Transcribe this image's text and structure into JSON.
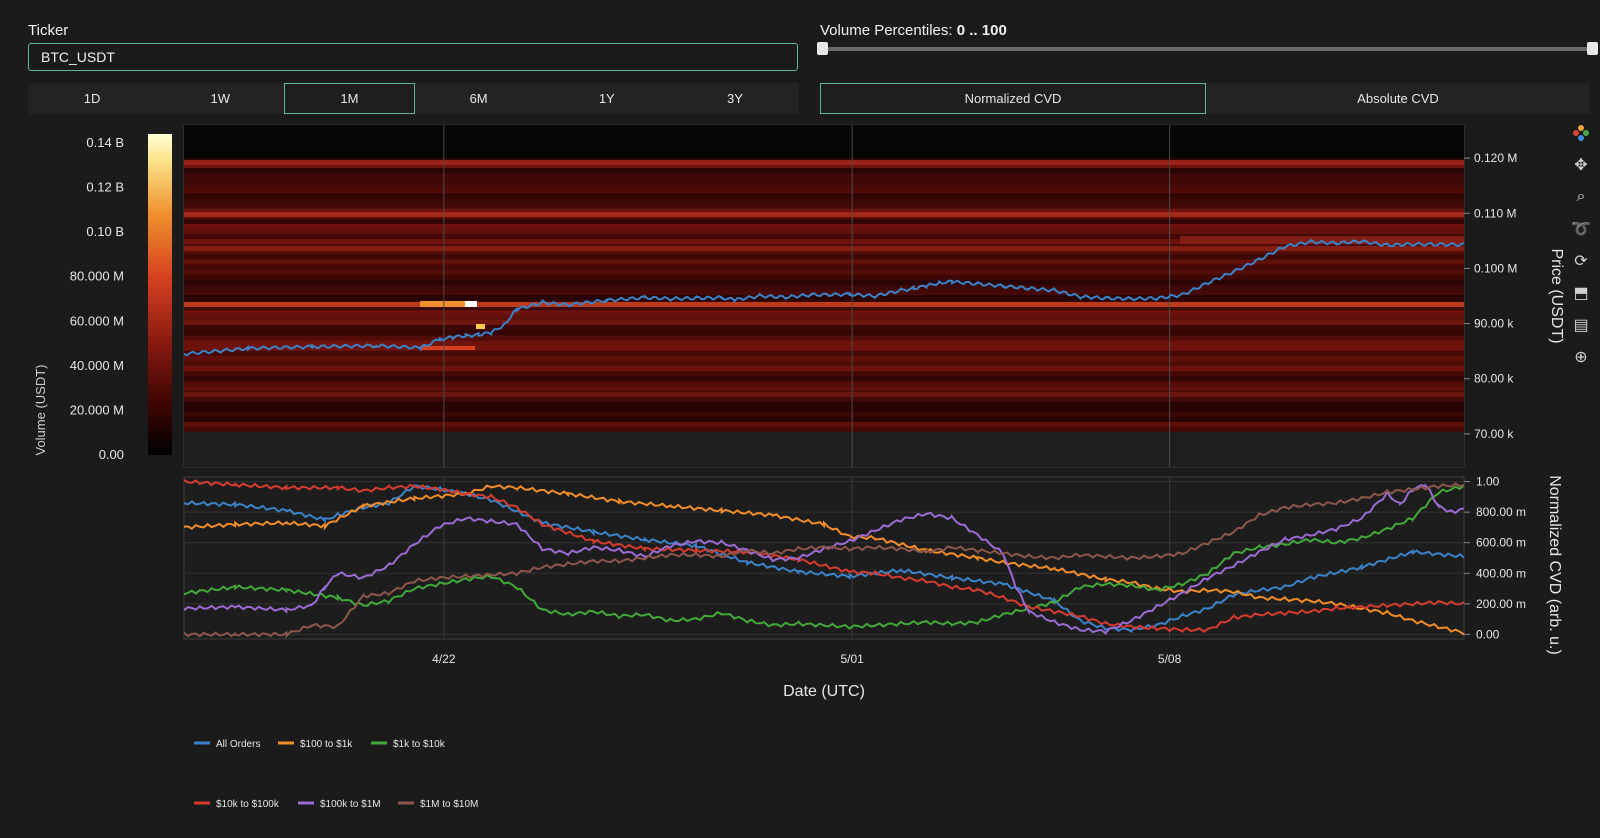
{
  "ticker": {
    "label": "Ticker",
    "value": "BTC_USDT"
  },
  "volume_percentiles": {
    "label": "Volume Percentiles:",
    "value": "0 .. 100",
    "min": 0,
    "max": 100
  },
  "timeframes": [
    {
      "label": "1D",
      "active": false
    },
    {
      "label": "1W",
      "active": false
    },
    {
      "label": "1M",
      "active": true
    },
    {
      "label": "6M",
      "active": false
    },
    {
      "label": "1Y",
      "active": false
    },
    {
      "label": "3Y",
      "active": false
    }
  ],
  "cvd_modes": [
    {
      "label": "Normalized CVD",
      "active": true
    },
    {
      "label": "Absolute CVD",
      "active": false
    }
  ],
  "modebar": [
    "plotly-logo-icon",
    "pan-icon",
    "zoom-icon",
    "lasso-icon",
    "reset-icon",
    "download-icon",
    "comment-icon",
    "crosshair-icon"
  ],
  "chart_data": [
    {
      "type": "heatmap",
      "colorbar": {
        "title": "Volume (USDT)",
        "ticks": [
          "0.00",
          "20.000 M",
          "40.000 M",
          "60.000 M",
          "80.000 M",
          "0.10 B",
          "0.12 B",
          "0.14 B"
        ],
        "range": [
          0,
          140000000
        ]
      },
      "yaxis": {
        "title": "Price (USDT)",
        "side": "right",
        "ticks": [
          "70.00 k",
          "80.00 k",
          "90.00 k",
          "0.100 M",
          "0.110 M",
          "0.120 M"
        ],
        "range": [
          64000,
          126000
        ]
      },
      "xaxis": {
        "ticks": [
          "4/22",
          "5/01",
          "5/08"
        ]
      },
      "colorscale": [
        "#000000",
        "#3a0503",
        "#8a1a10",
        "#d6401f",
        "#f0902c",
        "#fbe58a",
        "#ffffff"
      ],
      "price_line": {
        "name": "Price",
        "color": "#3b82c8",
        "x": [
          0,
          5,
          10,
          15,
          18.5,
          20,
          21,
          22,
          23,
          24,
          25,
          26,
          28,
          30,
          33,
          36,
          38,
          40,
          42,
          43,
          45,
          47,
          49,
          52,
          54,
          56,
          57,
          58,
          59,
          60,
          62,
          64,
          66,
          68,
          70,
          72,
          74,
          76,
          78,
          80,
          82,
          84,
          86,
          88,
          90,
          92,
          94,
          96,
          100
        ],
        "y": [
          84500,
          85500,
          85800,
          86000,
          85600,
          87200,
          87500,
          87800,
          88000,
          88300,
          89800,
          92600,
          93800,
          93400,
          94200,
          94700,
          94500,
          94600,
          94700,
          94300,
          95000,
          94800,
          95200,
          95300,
          95000,
          96000,
          96400,
          96800,
          97400,
          97600,
          97200,
          96800,
          96400,
          96000,
          94900,
          94600,
          94500,
          94600,
          95200,
          97400,
          99400,
          101600,
          104000,
          104800,
          104600,
          104900,
          104200,
          104400,
          104300
        ]
      }
    },
    {
      "type": "line",
      "yaxis": {
        "title": "Normalized CVD (arb. u.)",
        "side": "right",
        "ticks": [
          "0.00",
          "200.00 m",
          "400.00 m",
          "600.00 m",
          "800.00 m",
          "1.00"
        ],
        "range": [
          -0.03,
          1.03
        ]
      },
      "xaxis": {
        "title": "Date (UTC)",
        "ticks": [
          "4/22",
          "5/01",
          "5/08"
        ]
      },
      "series": [
        {
          "name": "All Orders",
          "color": "#3b82c8",
          "x": [
            0,
            4,
            8,
            11,
            12,
            14,
            16,
            18,
            20,
            22,
            24,
            28,
            32,
            36,
            40,
            44,
            48,
            52,
            56,
            60,
            64,
            68,
            70,
            72,
            74,
            76,
            78,
            80,
            82,
            84,
            86,
            88,
            92,
            96,
            100
          ],
          "y": [
            0.86,
            0.85,
            0.81,
            0.75,
            0.78,
            0.83,
            0.86,
            0.97,
            0.95,
            0.92,
            0.88,
            0.73,
            0.67,
            0.62,
            0.58,
            0.47,
            0.41,
            0.38,
            0.42,
            0.37,
            0.33,
            0.22,
            0.09,
            0.04,
            0.03,
            0.06,
            0.12,
            0.17,
            0.26,
            0.29,
            0.31,
            0.37,
            0.44,
            0.54,
            0.51
          ]
        },
        {
          "name": "$100 to $1k",
          "color": "#f28c28",
          "x": [
            0,
            4,
            8,
            11,
            14,
            18,
            22,
            24,
            26,
            30,
            34,
            38,
            42,
            46,
            50,
            52,
            54,
            58,
            62,
            64,
            68,
            72,
            74,
            76,
            78,
            80,
            82,
            84,
            86,
            88,
            90,
            92,
            94,
            96,
            98,
            100
          ],
          "y": [
            0.7,
            0.72,
            0.73,
            0.71,
            0.84,
            0.89,
            0.92,
            0.97,
            0.96,
            0.92,
            0.87,
            0.84,
            0.81,
            0.78,
            0.72,
            0.64,
            0.63,
            0.55,
            0.5,
            0.47,
            0.43,
            0.36,
            0.34,
            0.3,
            0.28,
            0.29,
            0.28,
            0.24,
            0.23,
            0.22,
            0.2,
            0.17,
            0.14,
            0.09,
            0.05,
            0.01
          ]
        },
        {
          "name": "$1k to $10k",
          "color": "#42a83a",
          "x": [
            0,
            4,
            8,
            12,
            14,
            16,
            18,
            20,
            22,
            24,
            26,
            28,
            30,
            32,
            34,
            36,
            38,
            40,
            42,
            44,
            46,
            48,
            50,
            52,
            54,
            56,
            58,
            60,
            62,
            64,
            66,
            68,
            70,
            72,
            74,
            76,
            78,
            80,
            82,
            84,
            86,
            88,
            90,
            92,
            94,
            96,
            98,
            100
          ],
          "y": [
            0.27,
            0.31,
            0.29,
            0.24,
            0.19,
            0.22,
            0.3,
            0.33,
            0.36,
            0.38,
            0.31,
            0.16,
            0.13,
            0.15,
            0.12,
            0.13,
            0.09,
            0.1,
            0.14,
            0.09,
            0.06,
            0.07,
            0.06,
            0.05,
            0.06,
            0.07,
            0.08,
            0.07,
            0.08,
            0.13,
            0.17,
            0.21,
            0.31,
            0.33,
            0.32,
            0.29,
            0.33,
            0.4,
            0.53,
            0.57,
            0.59,
            0.62,
            0.6,
            0.63,
            0.69,
            0.76,
            0.93,
            0.97
          ]
        },
        {
          "name": "$10k to $100k",
          "color": "#d63b2f",
          "x": [
            0,
            4,
            8,
            12,
            14,
            16,
            18,
            20,
            22,
            24,
            26,
            28,
            32,
            36,
            40,
            44,
            48,
            52,
            54,
            56,
            58,
            60,
            62,
            64,
            66,
            68,
            70,
            72,
            74,
            76,
            78,
            80,
            82,
            84,
            86,
            88,
            90,
            92,
            94,
            96,
            98,
            100
          ],
          "y": [
            1.0,
            0.98,
            0.96,
            0.96,
            0.94,
            0.96,
            0.97,
            0.95,
            0.92,
            0.9,
            0.83,
            0.72,
            0.61,
            0.56,
            0.55,
            0.54,
            0.49,
            0.41,
            0.4,
            0.37,
            0.35,
            0.31,
            0.29,
            0.24,
            0.18,
            0.15,
            0.12,
            0.07,
            0.05,
            0.04,
            0.03,
            0.03,
            0.11,
            0.13,
            0.14,
            0.15,
            0.17,
            0.18,
            0.19,
            0.2,
            0.21,
            0.2
          ]
        },
        {
          "name": "$100k to $1M",
          "color": "#9b6ad2",
          "x": [
            0,
            4,
            8,
            10,
            11,
            12,
            14,
            16,
            18,
            20,
            22,
            24,
            26,
            28,
            30,
            32,
            34,
            36,
            38,
            40,
            42,
            44,
            46,
            48,
            50,
            52,
            54,
            56,
            58,
            60,
            62,
            64,
            65,
            66,
            68,
            70,
            72,
            74,
            76,
            78,
            80,
            82,
            84,
            86,
            88,
            90,
            92,
            94,
            95,
            96,
            97,
            98,
            99,
            100
          ],
          "y": [
            0.17,
            0.18,
            0.16,
            0.19,
            0.31,
            0.4,
            0.37,
            0.45,
            0.59,
            0.71,
            0.76,
            0.74,
            0.72,
            0.56,
            0.53,
            0.57,
            0.55,
            0.51,
            0.58,
            0.61,
            0.6,
            0.55,
            0.49,
            0.5,
            0.56,
            0.61,
            0.68,
            0.75,
            0.79,
            0.76,
            0.65,
            0.53,
            0.31,
            0.15,
            0.08,
            0.03,
            0.02,
            0.09,
            0.18,
            0.27,
            0.37,
            0.45,
            0.54,
            0.62,
            0.65,
            0.69,
            0.76,
            0.92,
            0.85,
            0.95,
            0.98,
            0.84,
            0.8,
            0.82
          ]
        },
        {
          "name": "$1M to $10M",
          "color": "#8c564b",
          "x": [
            0,
            4,
            8,
            10,
            12,
            14,
            16,
            18,
            20,
            22,
            24,
            26,
            28,
            30,
            32,
            34,
            36,
            38,
            40,
            42,
            44,
            46,
            48,
            50,
            52,
            54,
            56,
            58,
            60,
            62,
            64,
            66,
            68,
            70,
            72,
            74,
            76,
            78,
            80,
            82,
            84,
            86,
            88,
            90,
            92,
            94,
            96,
            98,
            100
          ],
          "y": [
            0.0,
            0.0,
            0.0,
            0.06,
            0.05,
            0.25,
            0.27,
            0.35,
            0.37,
            0.38,
            0.39,
            0.4,
            0.44,
            0.46,
            0.48,
            0.48,
            0.5,
            0.52,
            0.52,
            0.51,
            0.55,
            0.53,
            0.56,
            0.57,
            0.56,
            0.57,
            0.56,
            0.54,
            0.57,
            0.55,
            0.53,
            0.51,
            0.5,
            0.52,
            0.51,
            0.5,
            0.51,
            0.53,
            0.6,
            0.67,
            0.78,
            0.83,
            0.85,
            0.86,
            0.89,
            0.93,
            0.95,
            0.97,
            0.98
          ]
        }
      ]
    }
  ]
}
